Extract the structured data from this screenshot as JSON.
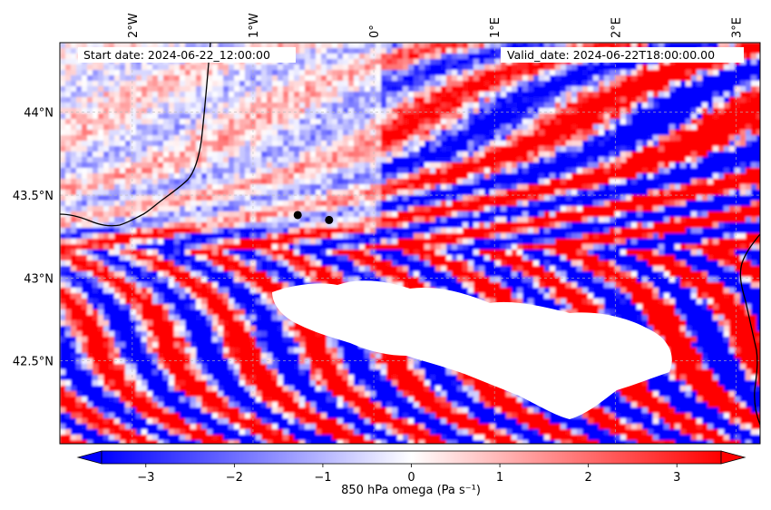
{
  "header": {
    "start_date": "Start date: 2024-06-22_12:00:00",
    "valid_date": "Valid_date: 2024-06-22T18:00:00.00"
  },
  "map": {
    "longitude_labels": [
      "2°W",
      "1°W",
      "0°",
      "1°E",
      "2°E",
      "3°E"
    ],
    "latitude_labels": [
      "44°N",
      "43.5°N",
      "43°N",
      "42.5°N"
    ],
    "longitude_values": [
      -2,
      -1,
      0,
      1,
      2,
      3
    ],
    "latitude_values": [
      44,
      43.5,
      43,
      42.5
    ],
    "extent": {
      "lon_min": -2.6,
      "lon_max": 3.2,
      "lat_min": 42.0,
      "lat_max": 44.42
    },
    "gridlines": true,
    "points": [
      {
        "lon": -0.63,
        "lat": 43.38
      },
      {
        "lon": -0.37,
        "lat": 43.35
      }
    ],
    "field": "850 hPa omega",
    "masked_region": "terrain above 850 hPa (Pyrenees)"
  },
  "colorbar": {
    "colormap": "bwr",
    "min": -3.5,
    "max": 3.5,
    "extend": "both",
    "ticks": [
      -3,
      -2,
      -1,
      0,
      1,
      2,
      3
    ],
    "tick_labels": [
      "−3",
      "−2",
      "−1",
      "0",
      "1",
      "2",
      "3"
    ],
    "label": "850 hPa omega (Pa s⁻¹)",
    "colors": {
      "low": "#0000ff",
      "mid": "#ffffff",
      "high": "#ff0000"
    }
  }
}
